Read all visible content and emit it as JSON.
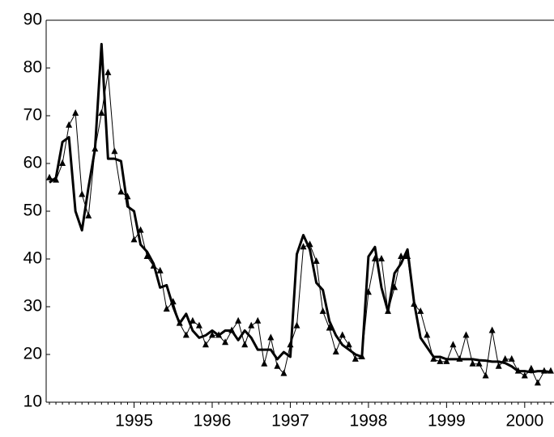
{
  "chart_data": {
    "type": "line",
    "categories": [
      null,
      null,
      null,
      null,
      null,
      null,
      null,
      null,
      null,
      null,
      null,
      null,
      null,
      "1995",
      null,
      null,
      null,
      null,
      null,
      null,
      null,
      null,
      null,
      null,
      null,
      "1996",
      null,
      null,
      null,
      null,
      null,
      null,
      null,
      null,
      null,
      null,
      null,
      "1997",
      null,
      null,
      null,
      null,
      null,
      null,
      null,
      null,
      null,
      null,
      null,
      "1998",
      null,
      null,
      null,
      null,
      null,
      null,
      null,
      null,
      null,
      null,
      null,
      "1999",
      null,
      null,
      null,
      null,
      null,
      null,
      null,
      null,
      null,
      null,
      null,
      "2000",
      null,
      null,
      null,
      null
    ],
    "series": [
      {
        "color": "#000000",
        "values": [
          56,
          57,
          64.5,
          65.5,
          50,
          46,
          55,
          63,
          85,
          61,
          61,
          60.5,
          51,
          50,
          43,
          41.5,
          39,
          34,
          34.5,
          30,
          26.5,
          28.5,
          25,
          23.5,
          24,
          25,
          24,
          25,
          25,
          23,
          25,
          23.5,
          21,
          21,
          21,
          19,
          20.5,
          19.5,
          41,
          45,
          42,
          35,
          33.5,
          27,
          24,
          22,
          21,
          20,
          19.5,
          40.5,
          42.5,
          34,
          29,
          37,
          39,
          42,
          31,
          23.5,
          21.5,
          19.5,
          19.5,
          19,
          19,
          19,
          19,
          19,
          18.8,
          18.7,
          18.5,
          18.5,
          18.2,
          17.5,
          16.5,
          16.5,
          16.3,
          16.5,
          16.5,
          16.3
        ]
      },
      {
        "color": "#000000",
        "values": [
          57,
          56.5,
          60,
          68,
          70.5,
          53.5,
          49,
          63,
          70.5,
          79,
          62.5,
          54,
          53,
          44,
          46,
          40.5,
          38.5,
          37.5,
          29.5,
          31,
          26.5,
          24,
          27,
          26,
          22,
          24,
          24,
          22.5,
          25,
          27,
          22,
          26,
          27,
          18,
          23.5,
          17.5,
          16,
          22,
          26,
          42.5,
          43,
          39.5,
          29,
          25.5,
          20.5,
          24,
          22,
          19,
          19.5,
          33,
          40,
          40,
          29,
          34,
          40.5,
          40.5,
          30.5,
          29,
          24,
          19,
          18.5,
          18.5,
          22,
          19,
          24,
          18,
          18,
          15.5,
          25,
          17.5,
          19,
          19,
          16.5,
          15.5,
          17,
          14,
          16.5,
          16.5
        ]
      }
    ],
    "ylim": [
      10,
      90
    ],
    "yticks": [
      10,
      20,
      30,
      40,
      50,
      60,
      70,
      80,
      90
    ]
  }
}
